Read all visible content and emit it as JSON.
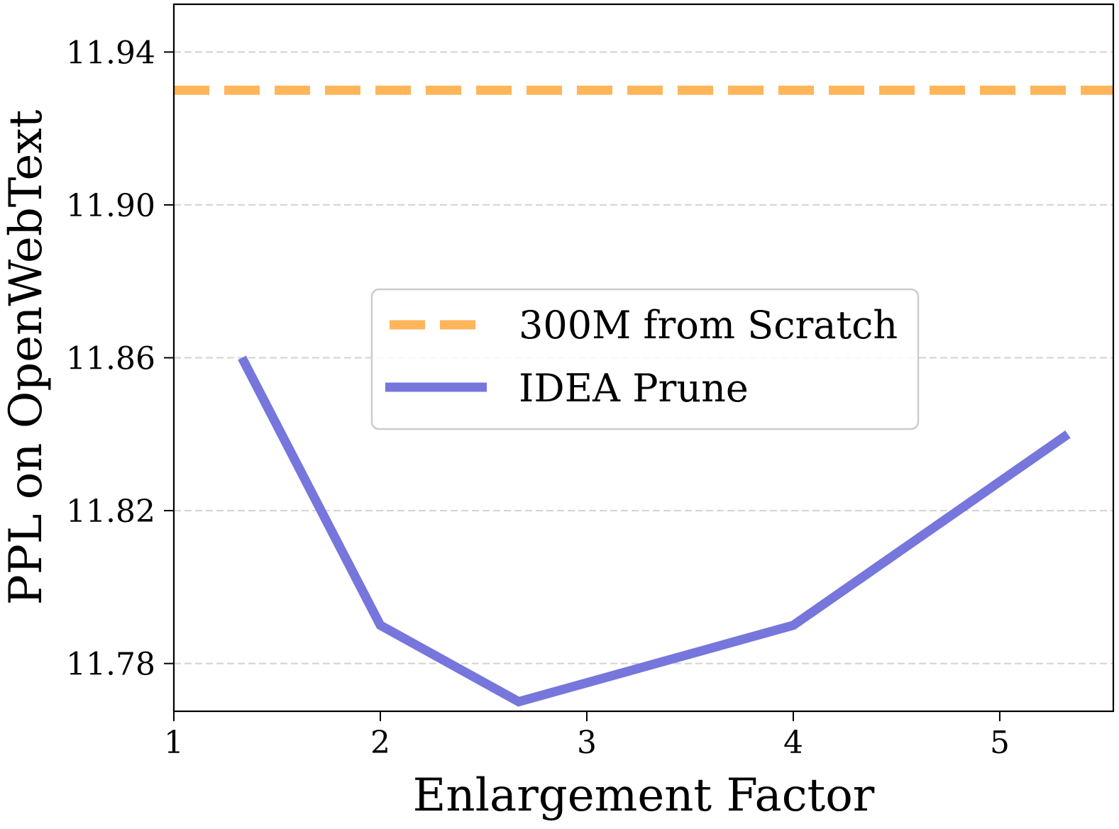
{
  "chart_data": {
    "type": "line",
    "title": "",
    "xlabel": "Enlargement Factor",
    "ylabel": "PPL on OpenWebText",
    "xlim": [
      1,
      5.55
    ],
    "ylim": [
      11.7675,
      11.9525
    ],
    "xticks": [
      1,
      2,
      3,
      4,
      5
    ],
    "xtick_labels": [
      "1",
      "2",
      "3",
      "4",
      "5"
    ],
    "yticks": [
      11.78,
      11.82,
      11.86,
      11.9,
      11.94
    ],
    "ytick_labels": [
      "11.78",
      "11.82",
      "11.86",
      "11.90",
      "11.94"
    ],
    "grid": "horizontal dashed",
    "legend_position": "center",
    "series": [
      {
        "name": "300M from Scratch",
        "style": "dashed",
        "color": "#ffb55a",
        "x": [
          1,
          5.55
        ],
        "y": [
          11.93,
          11.93
        ]
      },
      {
        "name": "IDEA Prune",
        "style": "solid",
        "color": "#7676dc",
        "x": [
          1.33,
          2.0,
          2.67,
          4.0,
          5.33
        ],
        "y": [
          11.86,
          11.79,
          11.77,
          11.79,
          11.84
        ]
      }
    ]
  }
}
